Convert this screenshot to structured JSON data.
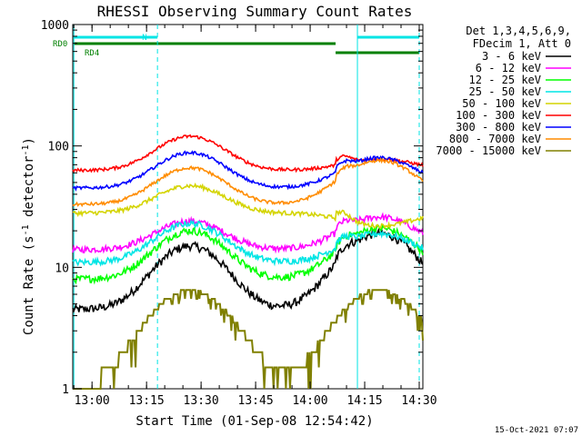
{
  "chart_data": {
    "type": "line",
    "title": "RHESSI Observing Summary Count Rates",
    "xlabel": "Start Time (01-Sep-08 12:54:42)",
    "ylabel_main": "Count Rate (s",
    "ylabel_sup1": "-1",
    "ylabel_mid": " detector",
    "ylabel_sup2": "-1",
    "ylabel_end": ")",
    "yscale": "log",
    "ylim": [
      1,
      1000
    ],
    "x_time_range": [
      "12:54:42",
      "14:31:00"
    ],
    "x_ticks": [
      "13:00",
      "13:15",
      "13:30",
      "13:45",
      "14:00",
      "14:15",
      "14:30"
    ],
    "y_ticks": [
      "1",
      "10",
      "100",
      "1000"
    ],
    "legend_header": [
      "Det 1,3,4,5,6,9,",
      "FDecim 1, Att 0"
    ],
    "legend_placement": "right",
    "flags": [
      {
        "label": "N",
        "color": "#00e5e5",
        "intervals": [
          [
            "12:55",
            "13:18"
          ],
          [
            "14:13",
            "14:30"
          ]
        ]
      },
      {
        "label": "RD0",
        "color": "#008000",
        "intervals": [
          [
            "12:55",
            "14:07"
          ]
        ]
      },
      {
        "label": "RD4",
        "color": "#008000",
        "intervals": [
          [
            "14:07",
            "14:30"
          ]
        ]
      }
    ],
    "vlines_solid": [
      "12:55",
      "14:13"
    ],
    "vlines_dashed": [
      "13:18",
      "14:30"
    ],
    "series": [
      {
        "name": "3 - 6 keV",
        "color": "#000000",
        "night": 4.5,
        "peak1": 15,
        "peak2": 19,
        "flare": 4.5,
        "jitter": 0.08
      },
      {
        "name": "6 - 12 keV",
        "color": "#ff00ff",
        "night": 14,
        "peak1": 24,
        "peak2": 26,
        "flare": 13,
        "jitter": 0.06
      },
      {
        "name": "12 - 25 keV",
        "color": "#00ff00",
        "night": 8,
        "peak1": 20,
        "peak2": 21,
        "flare": 7.5,
        "jitter": 0.07
      },
      {
        "name": "25 - 50 keV",
        "color": "#00e5e5",
        "night": 11,
        "peak1": 23,
        "peak2": 19,
        "flare": 9.5,
        "jitter": 0.06
      },
      {
        "name": "50 - 100 keV",
        "color": "#d4d400",
        "night": 28,
        "peak1": 47,
        "peak2": 22,
        "flare": 27,
        "jitter": 0.04
      },
      {
        "name": "100 - 300 keV",
        "color": "#ff0000",
        "night": 63,
        "peak1": 120,
        "peak2": 78,
        "flare": 60,
        "jitter": 0.03
      },
      {
        "name": "300 - 800 keV",
        "color": "#0000ff",
        "night": 45,
        "peak1": 88,
        "peak2": 80,
        "flare": 40,
        "jitter": 0.03
      },
      {
        "name": "800 - 7000 keV",
        "color": "#ff8c00",
        "night": 33,
        "peak1": 66,
        "peak2": 76,
        "flare": 32,
        "jitter": 0.03
      },
      {
        "name": "7000 - 15000 keV",
        "color": "#808000",
        "night": 1,
        "peak1": 6.5,
        "peak2": 6.5,
        "flare": 1,
        "jitter": 0.0
      }
    ]
  },
  "footer": {
    "timestamp": "15-Oct-2021 07:07"
  }
}
